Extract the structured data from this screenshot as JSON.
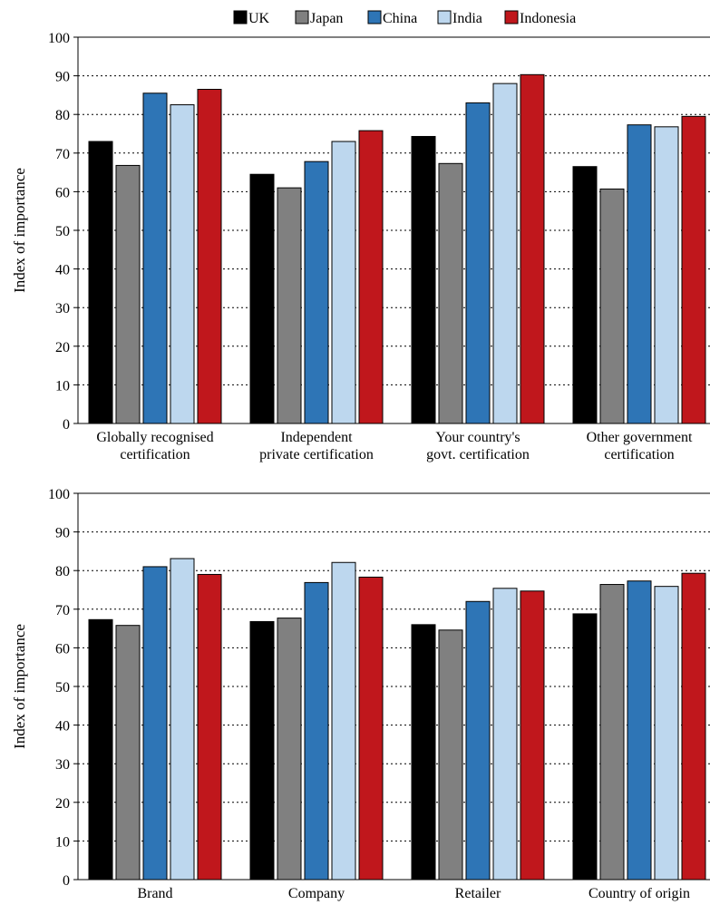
{
  "legend": [
    {
      "name": "UK",
      "color": "#000000"
    },
    {
      "name": "Japan",
      "color": "#808080"
    },
    {
      "name": "China",
      "color": "#2e75b6"
    },
    {
      "name": "India",
      "color": "#bdd7ee"
    },
    {
      "name": "Indonesia",
      "color": "#c0171c"
    }
  ],
  "chart_data": [
    {
      "type": "bar",
      "categories": [
        [
          "Globally recognised",
          "certification"
        ],
        [
          "Independent",
          "private certification"
        ],
        [
          "Your country's",
          "govt. certification"
        ],
        [
          "Other government",
          "certification"
        ]
      ],
      "series": [
        {
          "name": "UK",
          "values": [
            73,
            64.5,
            74.3,
            66.5
          ]
        },
        {
          "name": "Japan",
          "values": [
            66.8,
            61,
            67.3,
            60.7
          ]
        },
        {
          "name": "China",
          "values": [
            85.5,
            67.8,
            83,
            77.3
          ]
        },
        {
          "name": "India",
          "values": [
            82.5,
            73,
            88,
            76.8
          ]
        },
        {
          "name": "Indonesia",
          "values": [
            86.5,
            75.8,
            90.3,
            79.5
          ]
        }
      ],
      "ylabel": "Index of importance",
      "ylim": [
        0,
        100
      ],
      "yticks": [
        "0",
        "10",
        "20",
        "30",
        "40",
        "50",
        "60",
        "70",
        "80",
        "90",
        "100"
      ],
      "grid": true,
      "legend_position": "top"
    },
    {
      "type": "bar",
      "categories": [
        [
          "Brand"
        ],
        [
          "Company"
        ],
        [
          "Retailer"
        ],
        [
          "Country of origin"
        ]
      ],
      "series": [
        {
          "name": "UK",
          "values": [
            67.3,
            66.8,
            66,
            68.8
          ]
        },
        {
          "name": "Japan",
          "values": [
            65.8,
            67.7,
            64.6,
            76.4
          ]
        },
        {
          "name": "China",
          "values": [
            81,
            76.9,
            72,
            77.3
          ]
        },
        {
          "name": "India",
          "values": [
            83.1,
            82.1,
            75.4,
            75.9
          ]
        },
        {
          "name": "Indonesia",
          "values": [
            79,
            78.3,
            74.7,
            79.3
          ]
        }
      ],
      "ylabel": "Index of importance",
      "ylim": [
        0,
        100
      ],
      "yticks": [
        "0",
        "10",
        "20",
        "30",
        "40",
        "50",
        "60",
        "70",
        "80",
        "90",
        "100"
      ],
      "grid": true
    }
  ]
}
